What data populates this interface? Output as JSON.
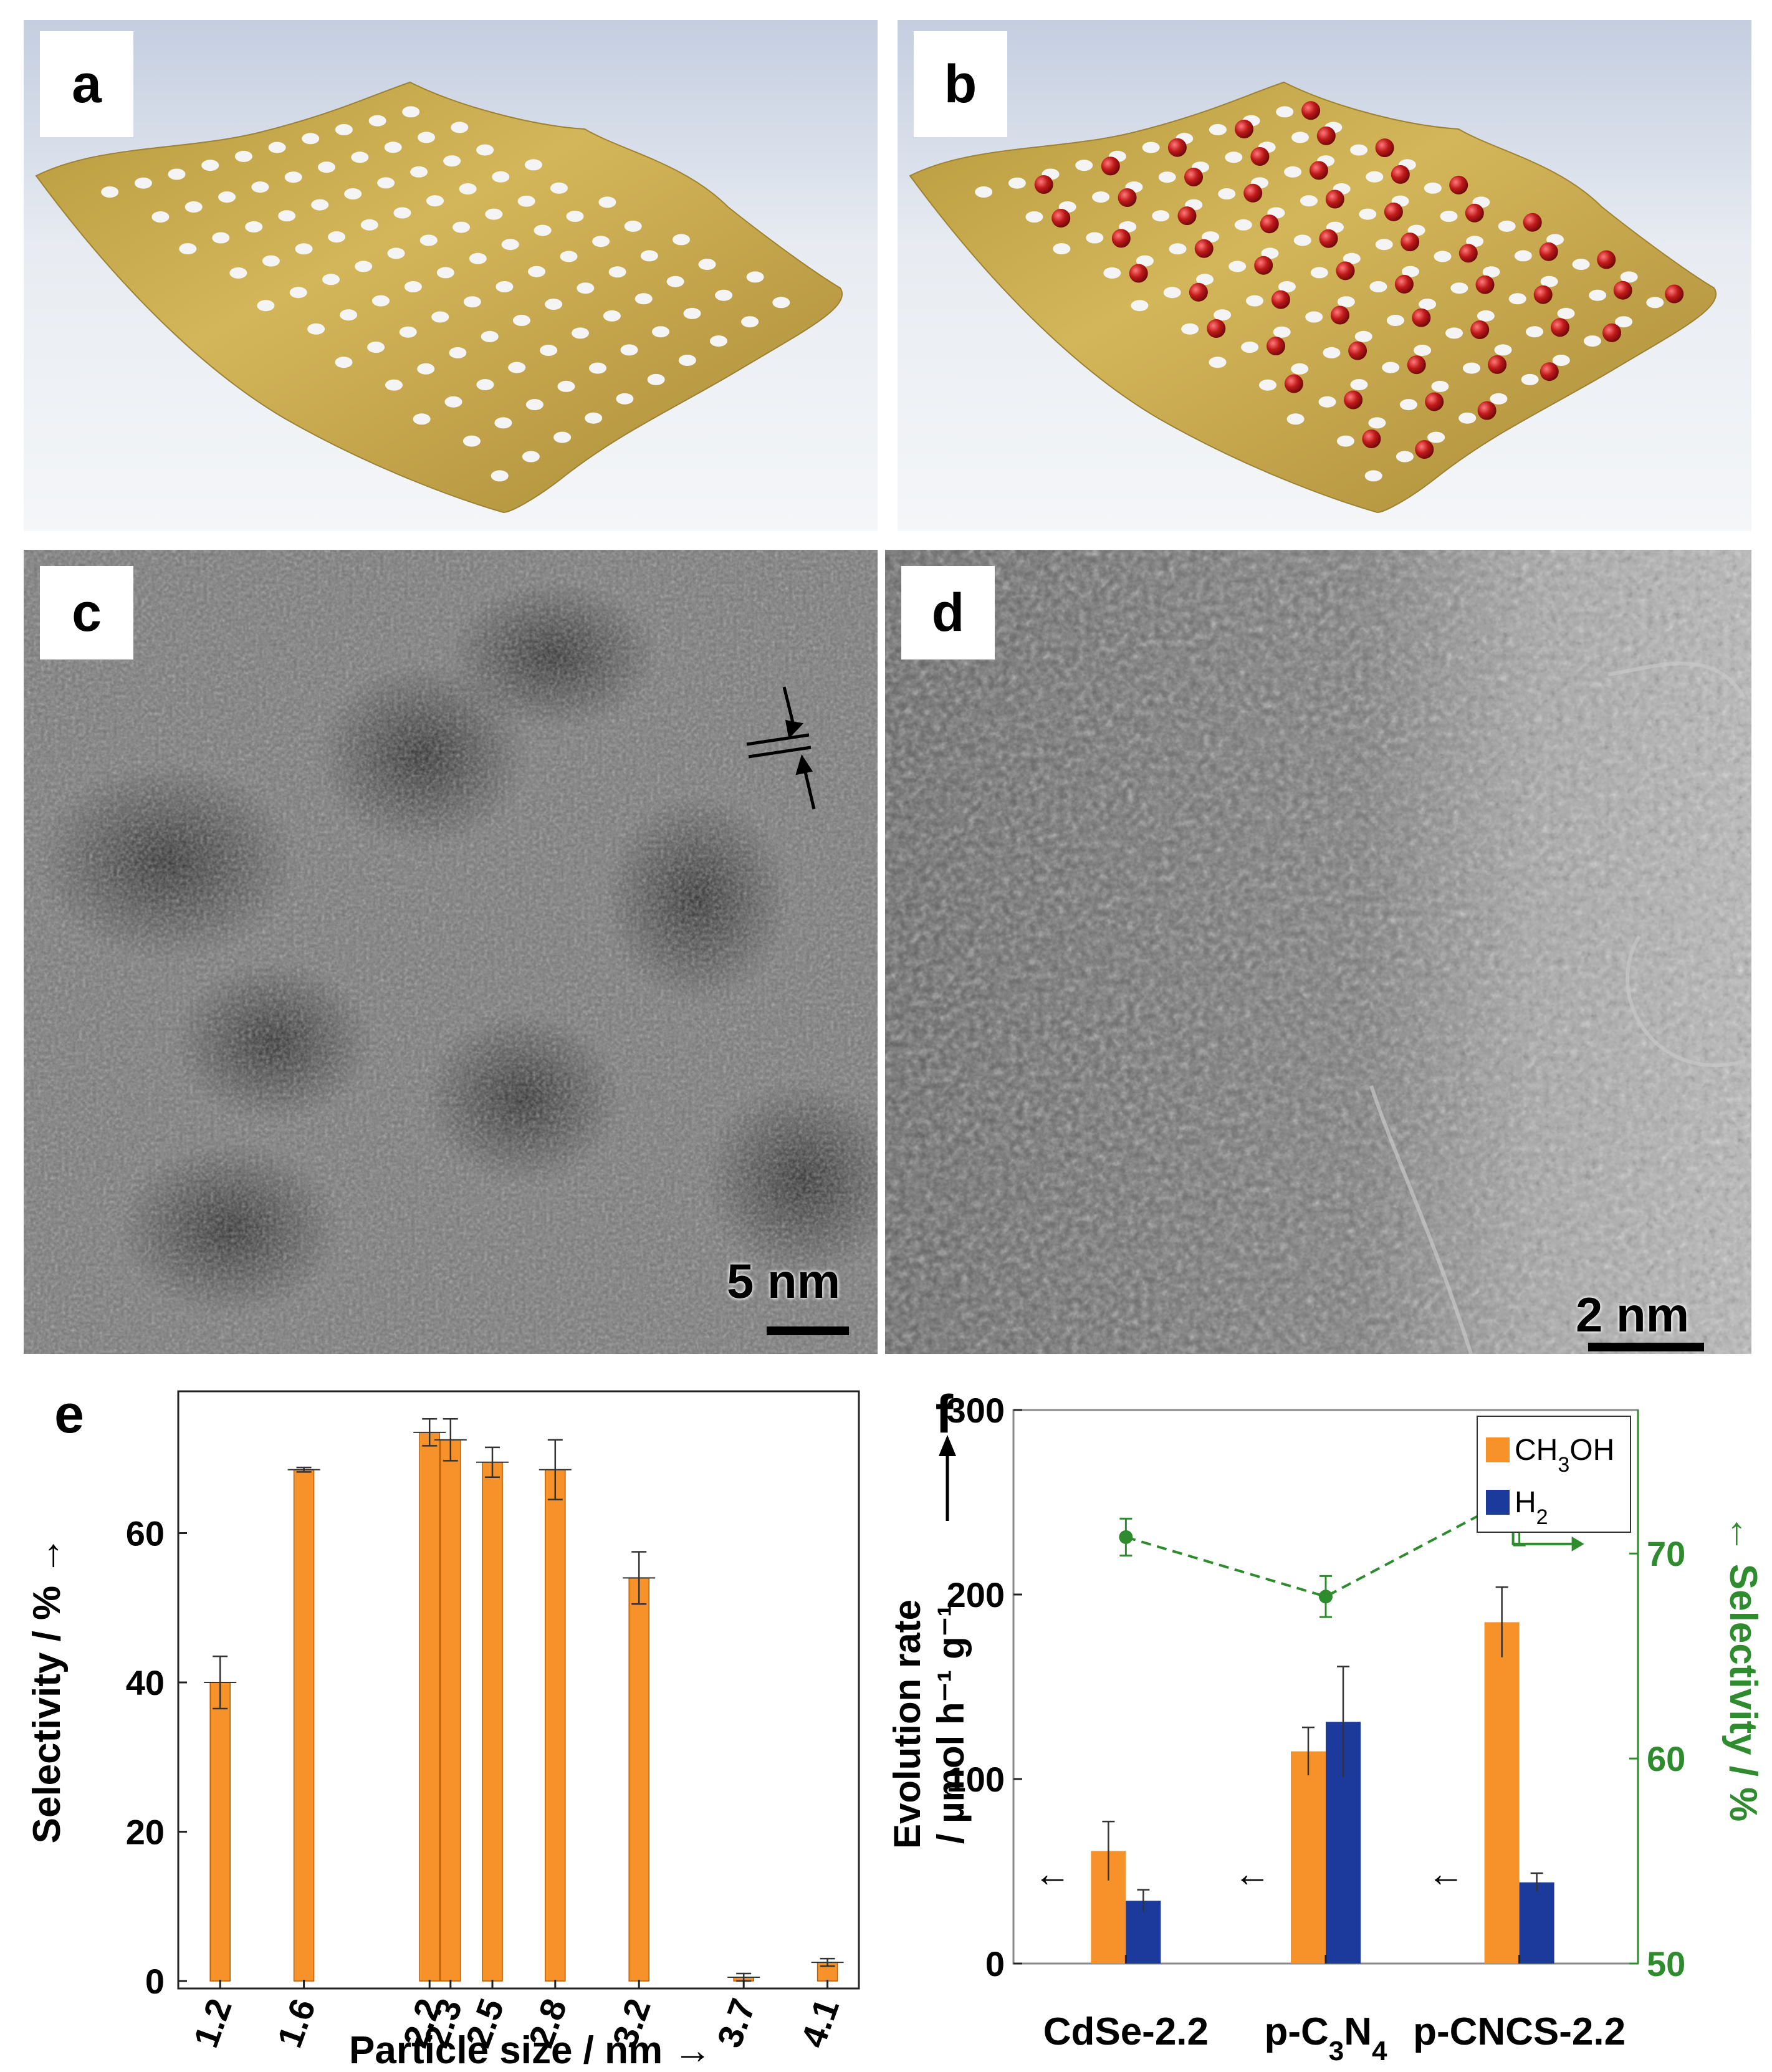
{
  "panels": {
    "a": {
      "label": "a"
    },
    "b": {
      "label": "b"
    },
    "c": {
      "label": "c",
      "scale_bar": "5 nm"
    },
    "d": {
      "label": "d",
      "scale_bar": "2 nm"
    },
    "e": {
      "label": "e"
    },
    "f": {
      "label": "f"
    }
  },
  "colors": {
    "orange": "#f7922a",
    "blue": "#1c3a9c",
    "green": "#2e8b2e",
    "sheet": "#c8a84a",
    "sphere": "#b01818"
  },
  "chart_data": [
    {
      "panel": "e",
      "type": "bar",
      "categories": [
        "1.2",
        "1.6",
        "2.2",
        "2.3",
        "2.5",
        "2.8",
        "3.2",
        "3.7",
        "4.1"
      ],
      "x": [
        1.2,
        1.6,
        2.2,
        2.3,
        2.5,
        2.8,
        3.2,
        3.7,
        4.1
      ],
      "values": [
        40,
        68.5,
        73.5,
        72.5,
        69.5,
        68.5,
        54,
        0.5,
        2.5
      ],
      "errors": [
        3.5,
        0.3,
        1.8,
        2.8,
        2,
        4,
        3.5,
        0.5,
        0.5
      ],
      "xlabel": "Particle size / nm",
      "ylabel": "Selectivity / %",
      "yticks": [
        0,
        20,
        40,
        60
      ],
      "ylim": [
        -1,
        79
      ],
      "xlim": [
        1.0,
        4.25
      ]
    },
    {
      "panel": "f",
      "type": "bar",
      "categories": [
        "CdSe-2.2",
        "p-C3N4",
        "p-CNCS-2.2"
      ],
      "category_labels": {
        "CdSe-2.2": [
          "CdSe-2.2"
        ],
        "p-C3N4": [
          "p-C",
          "3",
          "N",
          "4"
        ],
        "p-CNCS-2.2": [
          "p-CNCS-2.2"
        ]
      },
      "series": [
        {
          "name": "CH3OH",
          "legend": [
            "CH",
            "3",
            "OH"
          ],
          "values": [
            61,
            115,
            185
          ],
          "errors": [
            16,
            13,
            19
          ]
        },
        {
          "name": "H2",
          "legend": [
            "H",
            "2"
          ],
          "values": [
            34,
            131,
            44
          ],
          "errors": [
            6,
            30,
            5
          ]
        }
      ],
      "selectivity": {
        "values": [
          70.8,
          67.9,
          72.9
        ],
        "errors": [
          0.9,
          1.0,
          2.5
        ]
      },
      "ylabel_line1": "Evolution rate",
      "ylabel_line2": "/ µmol h⁻¹ g⁻¹",
      "ylabel_right": "Selectivity / %",
      "yticks_left": [
        0,
        100,
        200,
        300
      ],
      "yticks_right": [
        50,
        60,
        70
      ],
      "ylim_left": [
        0,
        300
      ],
      "ylim_right": [
        50,
        77
      ],
      "arrow_left": "←"
    }
  ]
}
